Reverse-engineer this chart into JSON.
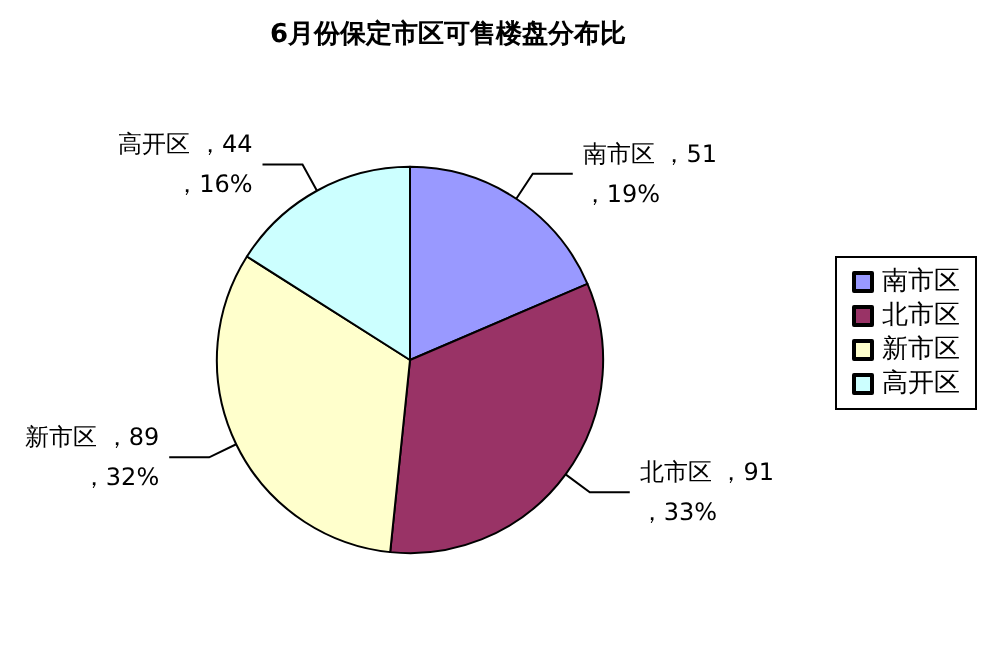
{
  "chart_data": {
    "type": "pie",
    "title": "6月份保定市区可售楼盘分布比",
    "categories": [
      "南市区",
      "北市区",
      "新市区",
      "高开区"
    ],
    "values": [
      51,
      91,
      89,
      44
    ],
    "colors": [
      "#9999ff",
      "#993366",
      "#ffffcc",
      "#ccffff"
    ],
    "value_labels": [
      "南市区 ，51\n，19%",
      "北市区 ，91\n，33%",
      "新市区 ，89\n，32%",
      "高开区 ，44\n，16%"
    ],
    "legend": "right"
  }
}
